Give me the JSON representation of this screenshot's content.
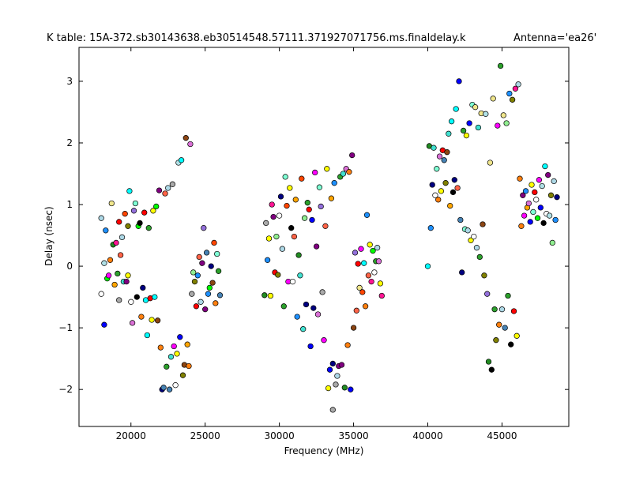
{
  "figure": {
    "title_left": "K table: 15A-372.sb30143638.eb30514548.57111.371927071756.ms.finaldelay.k",
    "title_right": "Antenna='ea26'"
  },
  "chart_data": {
    "type": "scatter",
    "xlabel": "Frequency (MHz)",
    "ylabel": "Delay (nsec)",
    "xlim": [
      16500,
      49500
    ],
    "ylim": [
      -2.6,
      3.55
    ],
    "xticks": [
      20000,
      25000,
      30000,
      35000,
      40000,
      45000
    ],
    "xtick_labels": [
      "20000",
      "25000",
      "30000",
      "35000",
      "40000",
      "45000"
    ],
    "yticks": [
      3,
      2,
      1,
      0,
      -1,
      -2
    ],
    "ytick_labels": [
      "3",
      "2",
      "1",
      "0",
      "−1",
      "−2"
    ],
    "grid": false,
    "legend": "none",
    "marker": "circle",
    "palette": [
      "#0000ff",
      "#00ff00",
      "#ff0000",
      "#00ffff",
      "#ff00ff",
      "#ffff00",
      "#000000",
      "#ffffff",
      "#ff7f0e",
      "#2ca02c",
      "#8b4513",
      "#800080",
      "#1e90ff",
      "#ff1493",
      "#7fffd4",
      "#ffa500",
      "#add8e6",
      "#90ee90",
      "#808000",
      "#000080",
      "#b0e0e6",
      "#ff6347",
      "#40e0d0",
      "#da70d6",
      "#a9a9a9",
      "#228b22",
      "#ff4500",
      "#9370db",
      "#f0e68c",
      "#4682b4"
    ],
    "points": [
      [
        18200,
        -0.95,
        0
      ],
      [
        18000,
        -0.45,
        7
      ],
      [
        18200,
        0.05,
        20
      ],
      [
        18300,
        0.58,
        12
      ],
      [
        18000,
        0.78,
        16
      ],
      [
        18400,
        -0.2,
        1
      ],
      [
        18500,
        -0.15,
        4
      ],
      [
        18700,
        1.02,
        28
      ],
      [
        18800,
        0.35,
        25
      ],
      [
        18600,
        0.1,
        8
      ],
      [
        18900,
        -0.3,
        15
      ],
      [
        19000,
        0.38,
        13
      ],
      [
        19200,
        0.72,
        2
      ],
      [
        19300,
        0.18,
        21
      ],
      [
        19100,
        -0.12,
        9
      ],
      [
        19400,
        0.47,
        16
      ],
      [
        19200,
        -0.55,
        24
      ],
      [
        19500,
        -0.25,
        22
      ],
      [
        19600,
        0.85,
        26
      ],
      [
        19700,
        -0.25,
        11
      ],
      [
        19800,
        0.65,
        18
      ],
      [
        19900,
        1.22,
        3
      ],
      [
        19800,
        -0.15,
        5
      ],
      [
        20000,
        -0.58,
        7
      ],
      [
        20100,
        -0.92,
        23
      ],
      [
        20200,
        0.9,
        27
      ],
      [
        20300,
        1.02,
        14
      ],
      [
        20400,
        -0.5,
        6
      ],
      [
        20500,
        0.65,
        1
      ],
      [
        20600,
        0.7,
        6
      ],
      [
        20700,
        -0.82,
        8
      ],
      [
        20800,
        -0.35,
        19
      ],
      [
        20900,
        0.87,
        2
      ],
      [
        21000,
        -0.55,
        3
      ],
      [
        21100,
        -1.12,
        3
      ],
      [
        21200,
        0.62,
        9
      ],
      [
        21300,
        -0.52,
        2
      ],
      [
        21400,
        -0.87,
        5
      ],
      [
        21500,
        0.9,
        5
      ],
      [
        21600,
        -0.5,
        3
      ],
      [
        21700,
        0.97,
        1
      ],
      [
        21800,
        -0.88,
        10
      ],
      [
        21900,
        1.23,
        11
      ],
      [
        22000,
        -1.32,
        8
      ],
      [
        22100,
        -2.0,
        19
      ],
      [
        22200,
        -1.97,
        29
      ],
      [
        22300,
        1.18,
        21
      ],
      [
        22400,
        -1.63,
        9
      ],
      [
        22500,
        1.27,
        16
      ],
      [
        22600,
        -2.0,
        29
      ],
      [
        22700,
        -1.47,
        22
      ],
      [
        22800,
        1.33,
        24
      ],
      [
        22900,
        -1.3,
        4
      ],
      [
        23000,
        -1.93,
        7
      ],
      [
        23100,
        -1.42,
        5
      ],
      [
        23200,
        1.68,
        20
      ],
      [
        23300,
        -1.15,
        0
      ],
      [
        23400,
        1.72,
        3
      ],
      [
        23500,
        -1.77,
        18
      ],
      [
        23600,
        -1.6,
        10
      ],
      [
        23700,
        2.08,
        10
      ],
      [
        23800,
        -1.27,
        15
      ],
      [
        23900,
        -1.62,
        8
      ],
      [
        24000,
        1.98,
        23
      ],
      [
        24100,
        -0.45,
        24
      ],
      [
        24200,
        -0.1,
        17
      ],
      [
        24300,
        -0.25,
        18
      ],
      [
        24400,
        -0.65,
        2
      ],
      [
        24500,
        -0.15,
        12
      ],
      [
        24600,
        0.15,
        21
      ],
      [
        24700,
        -0.58,
        16
      ],
      [
        24800,
        0.05,
        11
      ],
      [
        24900,
        0.62,
        27
      ],
      [
        25000,
        -0.7,
        11
      ],
      [
        25100,
        0.22,
        29
      ],
      [
        25200,
        -0.45,
        12
      ],
      [
        25300,
        -0.35,
        1
      ],
      [
        25400,
        0.0,
        19
      ],
      [
        25500,
        -0.27,
        10
      ],
      [
        25600,
        0.38,
        26
      ],
      [
        25700,
        -0.6,
        8
      ],
      [
        25800,
        0.2,
        14
      ],
      [
        25900,
        -0.08,
        9
      ],
      [
        26000,
        -0.47,
        29
      ],
      [
        29000,
        -0.47,
        25
      ],
      [
        29100,
        0.7,
        24
      ],
      [
        29200,
        0.1,
        12
      ],
      [
        29300,
        0.45,
        5
      ],
      [
        29400,
        -0.48,
        5
      ],
      [
        29500,
        1.0,
        13
      ],
      [
        29600,
        0.8,
        11
      ],
      [
        29700,
        -0.1,
        2
      ],
      [
        29800,
        0.48,
        17
      ],
      [
        29900,
        -0.14,
        18
      ],
      [
        30000,
        0.82,
        7
      ],
      [
        30100,
        1.13,
        19
      ],
      [
        30200,
        0.28,
        16
      ],
      [
        30300,
        -0.65,
        9
      ],
      [
        30400,
        1.45,
        14
      ],
      [
        30500,
        0.98,
        26
      ],
      [
        30600,
        -0.25,
        4
      ],
      [
        30700,
        1.27,
        5
      ],
      [
        30800,
        0.62,
        6
      ],
      [
        30900,
        -0.25,
        7
      ],
      [
        31000,
        0.48,
        21
      ],
      [
        31100,
        1.08,
        15
      ],
      [
        31200,
        -0.82,
        12
      ],
      [
        31300,
        0.18,
        25
      ],
      [
        31400,
        -0.15,
        22
      ],
      [
        31500,
        1.42,
        26
      ],
      [
        31600,
        -1.02,
        22
      ],
      [
        31700,
        0.78,
        17
      ],
      [
        31800,
        -0.62,
        19
      ],
      [
        31900,
        1.03,
        9
      ],
      [
        32000,
        0.92,
        2
      ],
      [
        32100,
        -1.3,
        0
      ],
      [
        32200,
        0.75,
        0
      ],
      [
        32300,
        -0.68,
        19
      ],
      [
        32400,
        1.52,
        4
      ],
      [
        32500,
        0.32,
        11
      ],
      [
        32600,
        -0.78,
        23
      ],
      [
        32700,
        1.28,
        14
      ],
      [
        32800,
        0.97,
        27
      ],
      [
        32900,
        -0.42,
        24
      ],
      [
        33000,
        -1.2,
        4
      ],
      [
        33100,
        0.65,
        21
      ],
      [
        33200,
        1.58,
        5
      ],
      [
        33300,
        -1.98,
        5
      ],
      [
        33400,
        -1.68,
        0
      ],
      [
        33500,
        1.1,
        15
      ],
      [
        33600,
        -1.58,
        19
      ],
      [
        33700,
        1.35,
        12
      ],
      [
        33800,
        -1.92,
        24
      ],
      [
        33900,
        -1.78,
        16
      ],
      [
        34000,
        -1.62,
        11
      ],
      [
        34100,
        1.45,
        9
      ],
      [
        34200,
        -1.6,
        11
      ],
      [
        34300,
        1.5,
        22
      ],
      [
        34400,
        -1.97,
        25
      ],
      [
        34500,
        1.58,
        23
      ],
      [
        34600,
        -1.28,
        8
      ],
      [
        34700,
        1.53,
        8
      ],
      [
        34800,
        -2.0,
        0
      ],
      [
        34900,
        1.8,
        11
      ],
      [
        35000,
        -1.0,
        10
      ],
      [
        35100,
        0.22,
        27
      ],
      [
        35200,
        -0.72,
        21
      ],
      [
        35300,
        0.04,
        2
      ],
      [
        35400,
        -0.35,
        28
      ],
      [
        35500,
        0.28,
        4
      ],
      [
        35600,
        -0.42,
        26
      ],
      [
        35700,
        0.05,
        3
      ],
      [
        35800,
        -0.65,
        8
      ],
      [
        35900,
        0.83,
        12
      ],
      [
        36000,
        -0.15,
        21
      ],
      [
        36100,
        0.35,
        5
      ],
      [
        36200,
        -0.25,
        13
      ],
      [
        36300,
        0.25,
        1
      ],
      [
        36400,
        -0.1,
        7
      ],
      [
        36500,
        0.08,
        9
      ],
      [
        36600,
        0.3,
        16
      ],
      [
        36700,
        0.08,
        23
      ],
      [
        36800,
        -0.28,
        5
      ],
      [
        36900,
        -0.48,
        13
      ],
      [
        33600,
        -2.33,
        24
      ],
      [
        40000,
        -0.0,
        3
      ],
      [
        40100,
        1.95,
        25
      ],
      [
        40200,
        0.62,
        12
      ],
      [
        40300,
        1.32,
        19
      ],
      [
        40400,
        1.92,
        22
      ],
      [
        40500,
        1.15,
        7
      ],
      [
        40600,
        1.58,
        14
      ],
      [
        40700,
        1.08,
        8
      ],
      [
        40800,
        1.78,
        23
      ],
      [
        40900,
        1.22,
        5
      ],
      [
        41000,
        1.88,
        2
      ],
      [
        41100,
        1.72,
        29
      ],
      [
        41200,
        1.35,
        18
      ],
      [
        41300,
        1.85,
        10
      ],
      [
        41400,
        2.15,
        22
      ],
      [
        41500,
        0.98,
        15
      ],
      [
        41600,
        2.35,
        3
      ],
      [
        41700,
        1.2,
        6
      ],
      [
        41800,
        1.4,
        19
      ],
      [
        41900,
        2.55,
        3
      ],
      [
        42000,
        1.27,
        21
      ],
      [
        42100,
        3.0,
        0
      ],
      [
        42200,
        0.75,
        29
      ],
      [
        42300,
        -0.1,
        19
      ],
      [
        42400,
        2.2,
        9
      ],
      [
        42500,
        0.6,
        14
      ],
      [
        42600,
        2.12,
        5
      ],
      [
        42700,
        0.58,
        16
      ],
      [
        42800,
        2.32,
        0
      ],
      [
        42900,
        0.42,
        5
      ],
      [
        43000,
        2.62,
        14
      ],
      [
        43100,
        0.48,
        7
      ],
      [
        43200,
        2.58,
        28
      ],
      [
        43300,
        0.3,
        16
      ],
      [
        43400,
        2.25,
        22
      ],
      [
        43500,
        0.15,
        9
      ],
      [
        43600,
        2.48,
        28
      ],
      [
        43700,
        0.68,
        10
      ],
      [
        43800,
        -0.15,
        18
      ],
      [
        43900,
        2.47,
        20
      ],
      [
        44000,
        -0.45,
        27
      ],
      [
        44100,
        -1.55,
        25
      ],
      [
        44200,
        1.68,
        28
      ],
      [
        44300,
        -1.68,
        6
      ],
      [
        44400,
        2.72,
        28
      ],
      [
        44500,
        -0.7,
        9
      ],
      [
        44600,
        -1.2,
        18
      ],
      [
        44700,
        2.28,
        4
      ],
      [
        44800,
        -0.95,
        8
      ],
      [
        44900,
        3.25,
        9
      ],
      [
        45000,
        -0.7,
        16
      ],
      [
        45100,
        2.45,
        28
      ],
      [
        45200,
        -1.0,
        29
      ],
      [
        45300,
        2.32,
        17
      ],
      [
        45400,
        -0.48,
        9
      ],
      [
        45500,
        2.8,
        12
      ],
      [
        45600,
        -1.27,
        6
      ],
      [
        45700,
        2.7,
        18
      ],
      [
        45800,
        -0.73,
        2
      ],
      [
        45900,
        2.88,
        13
      ],
      [
        46000,
        -1.13,
        5
      ],
      [
        46100,
        2.95,
        16
      ],
      [
        46200,
        1.42,
        8
      ],
      [
        46300,
        0.65,
        8
      ],
      [
        46400,
        1.15,
        11
      ],
      [
        46500,
        0.82,
        4
      ],
      [
        46600,
        1.22,
        12
      ],
      [
        46700,
        0.95,
        15
      ],
      [
        46800,
        1.02,
        23
      ],
      [
        46900,
        0.72,
        0
      ],
      [
        47000,
        1.32,
        5
      ],
      [
        47100,
        0.88,
        14
      ],
      [
        47200,
        1.2,
        2
      ],
      [
        47300,
        1.08,
        7
      ],
      [
        47400,
        0.78,
        1
      ],
      [
        47500,
        1.4,
        4
      ],
      [
        47600,
        0.95,
        0
      ],
      [
        47700,
        1.3,
        20
      ],
      [
        47800,
        0.7,
        6
      ],
      [
        47900,
        1.62,
        3
      ],
      [
        48000,
        0.85,
        7
      ],
      [
        48100,
        1.48,
        11
      ],
      [
        48200,
        0.82,
        20
      ],
      [
        48300,
        1.15,
        18
      ],
      [
        48400,
        0.38,
        17
      ],
      [
        48500,
        1.38,
        16
      ],
      [
        48600,
        0.75,
        12
      ],
      [
        48700,
        1.12,
        19
      ]
    ]
  }
}
